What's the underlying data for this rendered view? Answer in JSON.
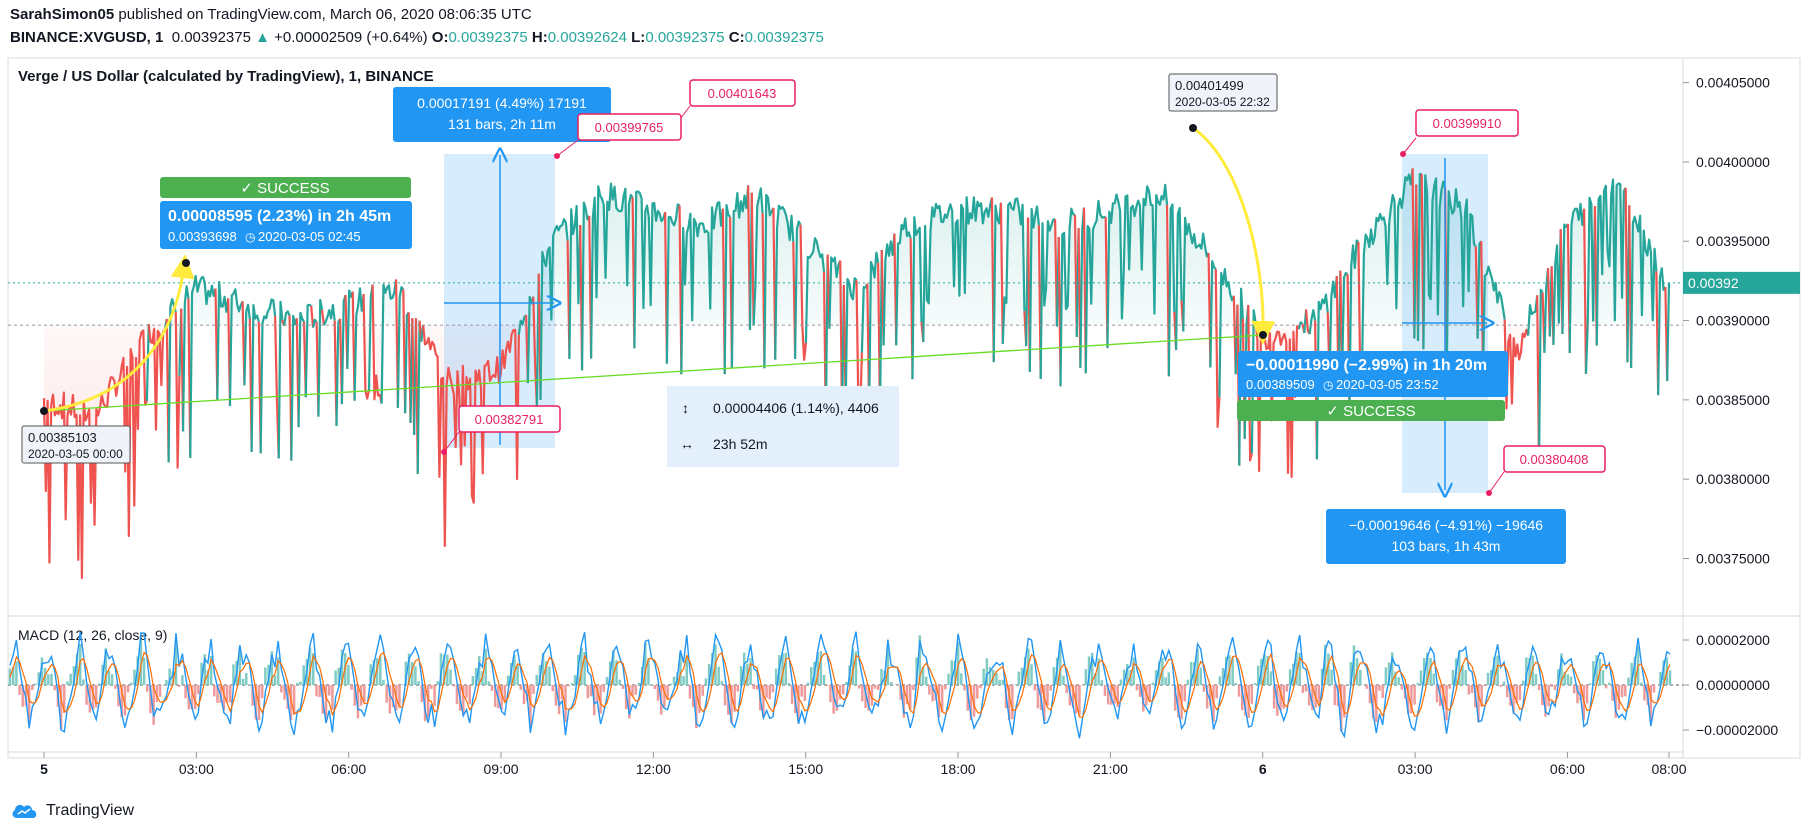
{
  "header": {
    "author": "SarahSimon05",
    "published": "published on TradingView.com, March 06, 2020 08:06:35 UTC",
    "symbol": "BINANCE:XVGUSD, 1",
    "last": "0.00392375",
    "change_arrow": "▲",
    "change": "+0.00002509 (+0.64%)",
    "o_label": "O:",
    "o": "0.00392375",
    "h_label": "H:",
    "h": "0.00392624",
    "l_label": "L:",
    "l": "0.00392375",
    "c_label": "C:",
    "c": "0.00392375"
  },
  "chart_title": "Verge / US Dollar (calculated by TradingView), 1, BINANCE",
  "macd_label": "MACD (12, 26, close, 9)",
  "footer": {
    "brand": "TradingView",
    "icon": "tradingview-cloud-icon"
  },
  "colors": {
    "up": "#26a69a",
    "down": "#ef5350",
    "accent": "#2196f3",
    "success": "#4caf50",
    "callout": "#e91e63",
    "macd": "#2196f3",
    "signal": "#ff6d00"
  },
  "annotations": {
    "success_label": "✓ SUCCESS",
    "measure1": {
      "line1": "0.00008595 (2.23%) in 2h 45m",
      "line2": "0.00393698",
      "line3": "2020-03-05  02:45"
    },
    "measure2": {
      "line1": "−0.00011990 (−2.99%) in 1h 20m",
      "line2": "0.00389509",
      "line3": "2020-03-05  23:52"
    },
    "range1": {
      "line1": "0.00017191 (4.49%) 17191",
      "line2": "131 bars, 2h 11m"
    },
    "range2": {
      "line1": "−0.00019646 (−4.91%) −19646",
      "line2": "103 bars, 1h 43m"
    },
    "info": {
      "line1": "0.00004406 (1.14%), 4406",
      "line2": "23h 52m"
    },
    "labels": {
      "start": {
        "price": "0.00385103",
        "date": "2020-03-05 00:00"
      },
      "peak": {
        "price": "0.00401499",
        "date": "2020-03-05 22:32"
      },
      "c1": "0.00401643",
      "c2": "0.00399765",
      "c3": "0.00382791",
      "c4": "0.00399910",
      "c5": "0.00380408"
    }
  },
  "chart_data": [
    {
      "type": "area",
      "title": "Verge / US Dollar (calculated by TradingView), 1, BINANCE",
      "series": [
        {
          "name": "XVGUSD",
          "x": [
            "2020-03-05 00:00",
            "2020-03-05 01:00",
            "2020-03-05 02:00",
            "2020-03-05 03:00",
            "2020-03-05 04:00",
            "2020-03-05 05:00",
            "2020-03-05 06:00",
            "2020-03-05 07:00",
            "2020-03-05 08:00",
            "2020-03-05 09:00",
            "2020-03-05 10:00",
            "2020-03-05 11:00",
            "2020-03-05 12:00",
            "2020-03-05 13:00",
            "2020-03-05 14:00",
            "2020-03-05 15:00",
            "2020-03-05 16:00",
            "2020-03-05 17:00",
            "2020-03-05 18:00",
            "2020-03-05 19:00",
            "2020-03-05 20:00",
            "2020-03-05 21:00",
            "2020-03-05 22:00",
            "2020-03-05 23:00",
            "2020-03-06 00:00",
            "2020-03-06 01:00",
            "2020-03-06 02:00",
            "2020-03-06 03:00",
            "2020-03-06 04:00",
            "2020-03-06 05:00",
            "2020-03-06 06:00",
            "2020-03-06 07:00",
            "2020-03-06 08:00"
          ],
          "values": [
            0.00385,
            0.00384,
            0.00389,
            0.00392,
            0.00391,
            0.0039,
            0.00391,
            0.00392,
            0.00386,
            0.00387,
            0.00395,
            0.00398,
            0.00397,
            0.00396,
            0.00398,
            0.00395,
            0.00392,
            0.00396,
            0.00397,
            0.00397,
            0.00396,
            0.00397,
            0.00398,
            0.00394,
            0.00389,
            0.0039,
            0.00395,
            0.00399,
            0.00397,
            0.00388,
            0.00396,
            0.00399,
            0.00392
          ]
        }
      ],
      "baseline": 0.0038971,
      "last": 0.00392375,
      "x_ticks": [
        "5",
        "03:00",
        "06:00",
        "09:00",
        "12:00",
        "15:00",
        "18:00",
        "21:00",
        "6",
        "03:00",
        "06:00",
        "08:00"
      ],
      "y_ticks": [
        "0.00405000",
        "0.00400000",
        "0.00395000",
        "0.00390000",
        "0.00385000",
        "0.00380000",
        "0.00375000"
      ],
      "ylim": [
        0.003715,
        0.004063
      ]
    },
    {
      "type": "line",
      "title": "MACD (12, 26, close, 9)",
      "y_ticks": [
        "0.00002000",
        "0.00000000",
        "−0.00002000"
      ],
      "ylim": [
        -2.8e-05,
        2.8e-05
      ]
    }
  ]
}
